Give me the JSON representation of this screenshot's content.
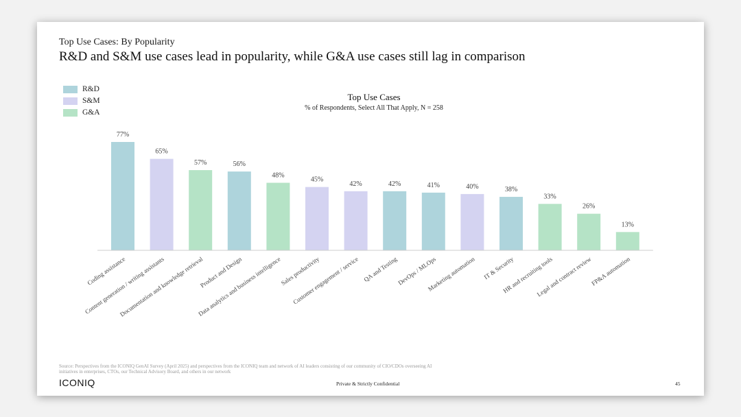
{
  "slide": {
    "eyebrow": "Top Use Cases: By Popularity",
    "headline": "R&D and S&M use cases lead in popularity, while G&A use cases still lag in comparison",
    "source": "Source: Perspectives from the ICONIQ GenAI Survey (April 2025) and perspectives from the ICONIQ team and network of AI leaders consisting of our community of CIO/CDOs overseeing AI initiatives in enterprises, CTOs, our Technical Advisory Board, and others in our network",
    "logo": "ICONIQ",
    "confidential": "Private & Strictly Confidential",
    "page_number": "45"
  },
  "legend": [
    {
      "label": "R&D",
      "key": "rd"
    },
    {
      "label": "S&M",
      "key": "sm"
    },
    {
      "label": "G&A",
      "key": "ga"
    }
  ],
  "colors": {
    "rd": "#aed4dc",
    "sm": "#d4d3f1",
    "ga": "#b5e3c6",
    "axis": "#cccccc",
    "label": "#444444"
  },
  "chart_data": {
    "type": "bar",
    "title": "Top Use Cases",
    "subtitle": "% of Respondents, Select All That Apply, N = 258",
    "value_suffix": "%",
    "ylim": [
      0,
      77
    ],
    "categories": [
      "Coding assistance",
      "Content generation / writing assistants",
      "Documentation and knowledge retrieval",
      "Product and Design",
      "Data analytics and business intelligence",
      "Sales productivity",
      "Customer engagement / service",
      "QA and Testing",
      "DevOps / MLOps",
      "Marketing automation",
      "IT & Security",
      "HR and recruiting tools",
      "Legal and contract review",
      "FP&A automation"
    ],
    "values": [
      77,
      65,
      57,
      56,
      48,
      45,
      42,
      42,
      41,
      40,
      38,
      33,
      26,
      13
    ],
    "groups": [
      "rd",
      "sm",
      "ga",
      "rd",
      "ga",
      "sm",
      "sm",
      "rd",
      "rd",
      "sm",
      "rd",
      "ga",
      "ga",
      "ga"
    ]
  }
}
